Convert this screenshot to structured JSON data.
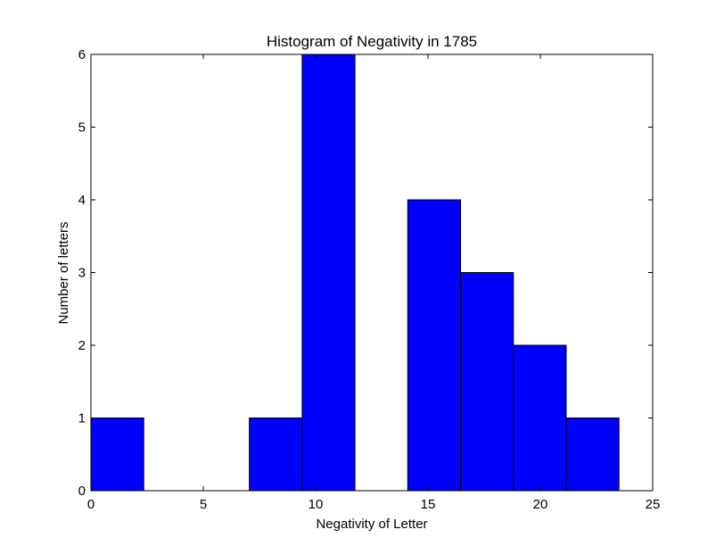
{
  "chart_data": {
    "type": "bar",
    "title": "Histogram of Negativity in 1785",
    "xlabel": "Negativity of Letter",
    "ylabel": "Number of letters",
    "xlim": [
      0,
      25
    ],
    "ylim": [
      0,
      6
    ],
    "xticks": [
      0,
      5,
      10,
      15,
      20,
      25
    ],
    "yticks": [
      0,
      1,
      2,
      3,
      4,
      5,
      6
    ],
    "bins": [
      {
        "start": 0.0,
        "end": 2.35,
        "count": 1
      },
      {
        "start": 2.35,
        "end": 4.7,
        "count": 0
      },
      {
        "start": 4.7,
        "end": 7.05,
        "count": 0
      },
      {
        "start": 7.05,
        "end": 9.4,
        "count": 1
      },
      {
        "start": 9.4,
        "end": 11.75,
        "count": 6
      },
      {
        "start": 11.75,
        "end": 14.1,
        "count": 0
      },
      {
        "start": 14.1,
        "end": 16.45,
        "count": 4
      },
      {
        "start": 16.45,
        "end": 18.8,
        "count": 3
      },
      {
        "start": 18.8,
        "end": 21.15,
        "count": 2
      },
      {
        "start": 21.15,
        "end": 23.5,
        "count": 1
      }
    ],
    "bar_color": "#0000ff",
    "edge_color": "#000000",
    "grid": false,
    "legend": "none"
  }
}
